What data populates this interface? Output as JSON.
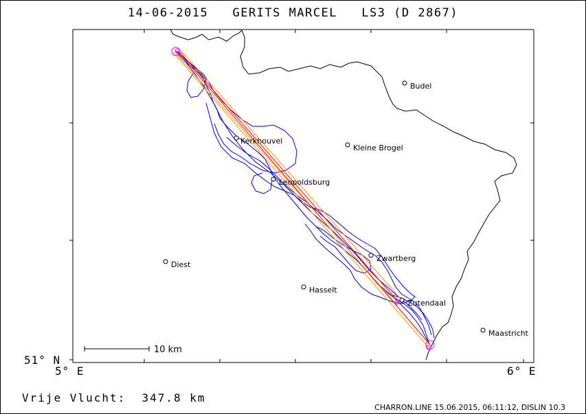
{
  "header": {
    "title": "14-06-2015   GERITS MARCEL   LS3 (D 2867)"
  },
  "axes": {
    "lat_label": "51° N",
    "lon_left": "5° E",
    "lon_right": "6° E"
  },
  "scale_bar": {
    "label": "10 km"
  },
  "cities": [
    {
      "name": "Budel"
    },
    {
      "name": "Kleine Brogel"
    },
    {
      "name": "Kerkhouvel"
    },
    {
      "name": "Leopoldsburg"
    },
    {
      "name": "Diest"
    },
    {
      "name": "Zwartberg"
    },
    {
      "name": "Hasselt"
    },
    {
      "name": "Zutendaal"
    },
    {
      "name": "Maastricht"
    }
  ],
  "footer": {
    "distance": "Vrije Vlucht:  347.8 km",
    "credits": "CHARRON.LINE 15.06.2015, 06:11:12, DISLIN 10.3"
  },
  "colors": {
    "border_line": "#000000",
    "track": "#0000cc",
    "task_line": "#ff0000",
    "task_line_alt": "#ff9900",
    "turnpoint": "#ff00ff"
  }
}
